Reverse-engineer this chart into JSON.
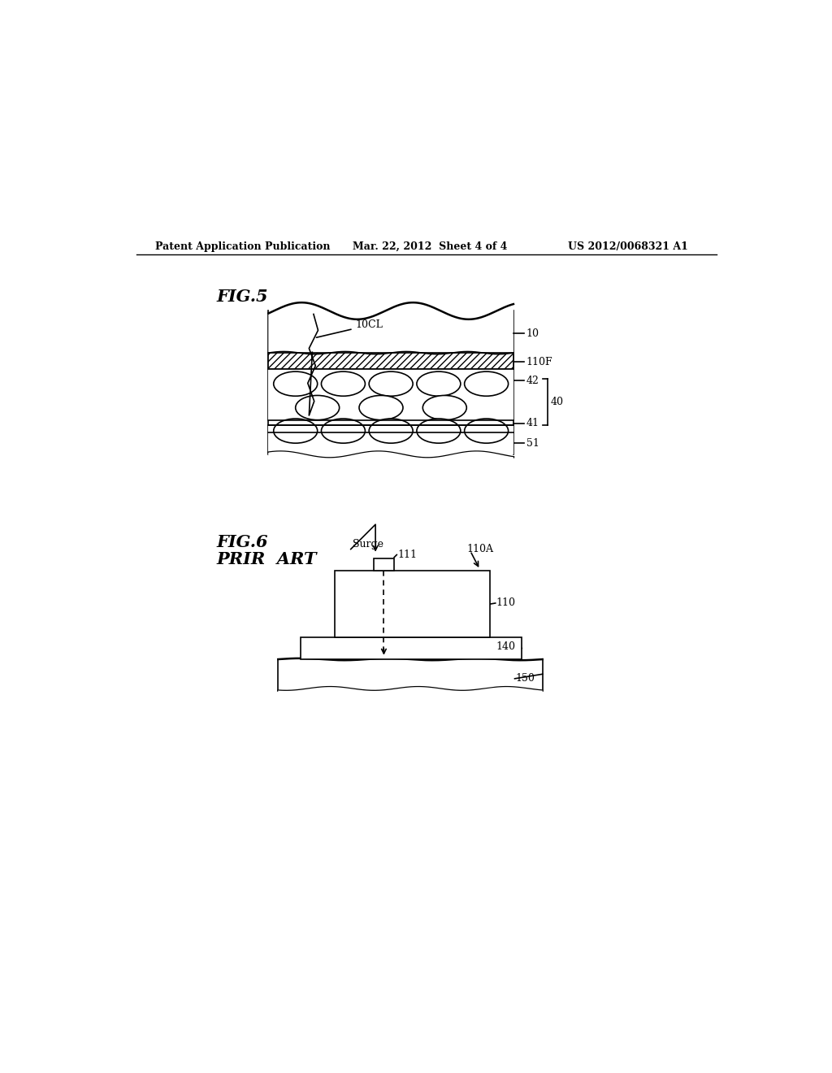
{
  "bg_color": "#ffffff",
  "header_left": "Patent Application Publication",
  "header_mid": "Mar. 22, 2012  Sheet 4 of 4",
  "header_right": "US 2012/0068321 A1",
  "fig5_label": "FIG.5",
  "fig6_label": "FIG.6",
  "fig6_sublabel": "PRIR  ART"
}
